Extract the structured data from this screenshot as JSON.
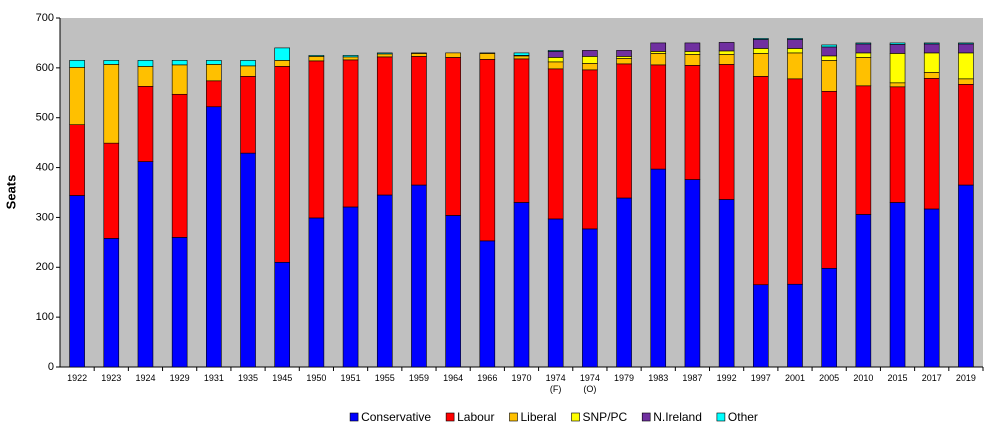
{
  "chart_data": {
    "type": "stacked-bar",
    "ylabel": "Seats",
    "categories": [
      "1922",
      "1923",
      "1924",
      "1929",
      "1931",
      "1935",
      "1945",
      "1950",
      "1951",
      "1955",
      "1959",
      "1964",
      "1966",
      "1970",
      "1974 (F)",
      "1974 (O)",
      "1979",
      "1983",
      "1987",
      "1992",
      "1997",
      "2001",
      "2005",
      "2010",
      "2015",
      "2017",
      "2019"
    ],
    "series": [
      {
        "name": "Conservative",
        "color": "#0000ff",
        "values": [
          344,
          258,
          412,
          260,
          522,
          429,
          210,
          299,
          321,
          345,
          365,
          304,
          253,
          330,
          297,
          277,
          339,
          397,
          376,
          336,
          165,
          166,
          198,
          306,
          330,
          317,
          365
        ]
      },
      {
        "name": "Labour",
        "color": "#ff0000",
        "values": [
          142,
          191,
          151,
          287,
          52,
          154,
          393,
          315,
          295,
          277,
          258,
          317,
          364,
          288,
          301,
          319,
          269,
          209,
          229,
          271,
          418,
          412,
          355,
          258,
          232,
          262,
          202
        ]
      },
      {
        "name": "Liberal",
        "color": "#ffc000",
        "values": [
          115,
          158,
          40,
          59,
          33,
          21,
          12,
          9,
          6,
          6,
          6,
          9,
          12,
          6,
          14,
          13,
          11,
          23,
          22,
          20,
          46,
          52,
          62,
          57,
          8,
          12,
          11
        ]
      },
      {
        "name": "SNP/PC",
        "color": "#ffff00",
        "values": [
          0,
          0,
          0,
          0,
          0,
          0,
          0,
          0,
          0,
          0,
          0,
          0,
          0,
          1,
          9,
          14,
          4,
          4,
          6,
          7,
          10,
          9,
          9,
          9,
          59,
          39,
          52
        ]
      },
      {
        "name": "N.Ireland",
        "color": "#7030a0",
        "values": [
          0,
          0,
          0,
          0,
          0,
          0,
          0,
          0,
          0,
          0,
          0,
          0,
          0,
          0,
          12,
          12,
          12,
          17,
          17,
          17,
          18,
          18,
          18,
          18,
          18,
          18,
          18
        ]
      },
      {
        "name": "Other",
        "color": "#00ffff",
        "values": [
          14,
          8,
          12,
          9,
          8,
          11,
          25,
          2,
          3,
          2,
          1,
          0,
          1,
          5,
          2,
          0,
          0,
          0,
          0,
          0,
          2,
          2,
          4,
          2,
          3,
          2,
          2
        ]
      }
    ],
    "ylim": [
      0,
      700
    ],
    "yticks": [
      0,
      100,
      200,
      300,
      400,
      500,
      600,
      700
    ],
    "grid": false,
    "legend": "bottom"
  }
}
